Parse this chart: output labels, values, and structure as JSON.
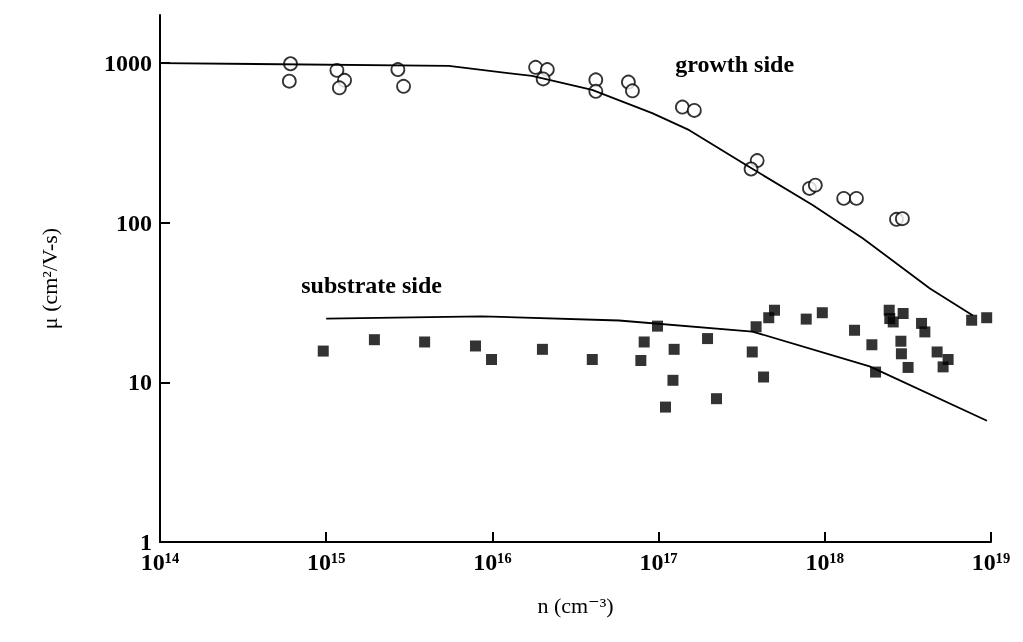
{
  "chart_data": {
    "type": "scatter",
    "xlabel": "n (cm⁻³)",
    "ylabel": "μ (cm²/V-s)",
    "log": "xy",
    "grid": false,
    "legend": false,
    "xlim": [
      100000000000000.0,
      1e+19
    ],
    "ylim": [
      1,
      2000
    ],
    "xticks": [
      {
        "value": 100000000000000.0,
        "label": "10¹⁴"
      },
      {
        "value": 1000000000000000.0,
        "label": "10¹⁵"
      },
      {
        "value": 1e+16,
        "label": "10¹⁶"
      },
      {
        "value": 1e+17,
        "label": "10¹⁷"
      },
      {
        "value": 1e+18,
        "label": "10¹⁸"
      },
      {
        "value": 1e+19,
        "label": "10¹⁹"
      }
    ],
    "yticks": [
      1,
      10,
      100,
      1000
    ],
    "series": [
      {
        "name": "growth side",
        "marker": "circle",
        "color": "#000000",
        "x": [
          610000000000000.0,
          600000000000000.0,
          1160000000000000.0,
          1290000000000000.0,
          1200000000000000.0,
          2700000000000000.0,
          2920000000000000.0,
          1.82e+16,
          2.14e+16,
          2.02e+16,
          4.19e+16,
          4.19e+16,
          6.58e+16,
          6.96e+16,
          1.39e+17,
          1.64e+17,
          3.92e+17,
          3.6e+17,
          8.09e+17,
          8.77e+17,
          1.3e+18,
          1.55e+18,
          2.7e+18,
          2.93e+18
        ],
        "values": [
          990,
          770,
          900,
          780,
          700,
          910,
          715,
          940,
          910,
          795,
          785,
          665,
          760,
          670,
          530,
          505,
          245,
          217,
          164,
          172,
          142,
          142,
          105,
          106
        ]
      },
      {
        "type": "line",
        "marker": "none",
        "color": "#000000",
        "x": [
          100000000000000.0,
          5460000000000000.0,
          1.73e+16,
          3.98e+16,
          9.15e+16,
          1.53e+17,
          3.38e+17,
          8.44e+17,
          1.69e+18,
          4.29e+18,
          7.78e+18
        ],
        "values": [
          1000,
          960,
          830,
          680,
          486,
          380,
          229,
          129,
          80,
          38.7,
          26.2
        ]
      },
      {
        "name": "substrate side",
        "marker": "square",
        "color": "#000000",
        "x": [
          960000000000000.0,
          1950000000000000.0,
          3910000000000000.0,
          7910000000000000.0,
          9880000000000000.0,
          2e+16,
          3.99e+16,
          8.19e+16,
          7.82e+16,
          9.85e+16,
          1.24e+17,
          1.22e+17,
          1.1e+17,
          1.97e+17,
          2.23e+17,
          3.66e+17,
          3.86e+17,
          4.6e+17,
          4.98e+17,
          4.28e+17,
          7.73e+17,
          9.66e+17,
          1.51e+18,
          1.92e+18,
          2.02e+18,
          2.44e+18,
          2.46e+18,
          2.96e+18,
          2.58e+18,
          2.87e+18,
          2.89e+18,
          3.17e+18,
          3.82e+18,
          4e+18,
          4.74e+18,
          5.52e+18,
          5.15e+18,
          7.65e+18,
          9.42e+18
        ],
        "values": [
          15.7,
          18.5,
          17.9,
          16.9,
          13.9,
          16.1,
          13.9,
          17.9,
          13.7,
          22.5,
          16.1,
          10.3,
          7.0,
          18.8,
          7.9,
          15.5,
          22.3,
          25.4,
          28.3,
          10.8,
          24.9,
          27.3,
          21.2,
          17.2,
          11.6,
          28.3,
          25.1,
          27.0,
          23.9,
          18.1,
          15.1,
          12.4,
          23.4,
          20.7,
          15.5,
          13.9,
          12.5,
          24.5,
          25.4
        ]
      },
      {
        "type": "line",
        "marker": "none",
        "color": "#000000",
        "x": [
          1000000000000000.0,
          8630000000000000.0,
          5.78e+16,
          3.67e+17,
          1.86e+18,
          9.46e+18
        ],
        "values": [
          25.1,
          25.9,
          24.4,
          20.8,
          12.6,
          5.75
        ]
      }
    ]
  }
}
